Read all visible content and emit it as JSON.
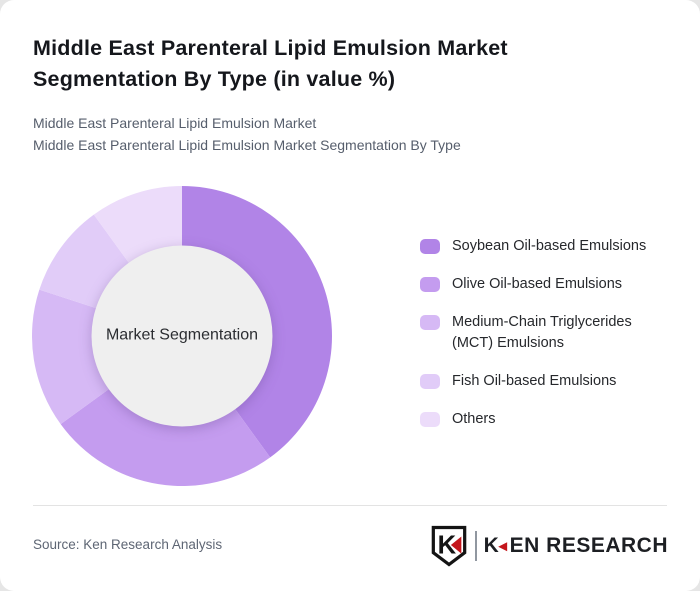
{
  "page": {
    "background": "#e6e6e6",
    "card_background": "#ffffff"
  },
  "header": {
    "title": "Middle East Parenteral Lipid Emulsion Market Segmentation By Type (in value %)",
    "subtitle_line1": "Middle East Parenteral Lipid Emulsion Market",
    "subtitle_line2": "Middle East Parenteral Lipid Emulsion Market Segmentation By Type"
  },
  "chart_data": {
    "type": "pie",
    "subtype": "donut",
    "title": "Middle East Parenteral Lipid Emulsion Market Segmentation By Type (in value %)",
    "center_label": "Market Segmentation",
    "labels": [
      "Soybean Oil-based Emulsions",
      "Olive Oil-based Emulsions",
      "Medium-Chain Triglycerides (MCT) Emulsions",
      "Fish Oil-based Emulsions",
      "Others"
    ],
    "values": [
      40,
      25,
      15,
      10,
      10
    ],
    "unit": "%",
    "colors": [
      "#b184e7",
      "#c49cef",
      "#d6b9f5",
      "#e1ccf8",
      "#ecdcfa"
    ],
    "inner_circle_color": "#efefef",
    "start_angle_deg": 0,
    "direction": "clockwise",
    "inner_radius_ratio": 0.6,
    "legend_position": "right"
  },
  "footer": {
    "source": "Source: Ken Research Analysis",
    "logo": {
      "emblem_letter": "K",
      "wordmark_k": "K",
      "wordmark_rest": "EN RESEARCH",
      "triangle_glyph": "◄",
      "brand_red": "#c4161c"
    }
  }
}
